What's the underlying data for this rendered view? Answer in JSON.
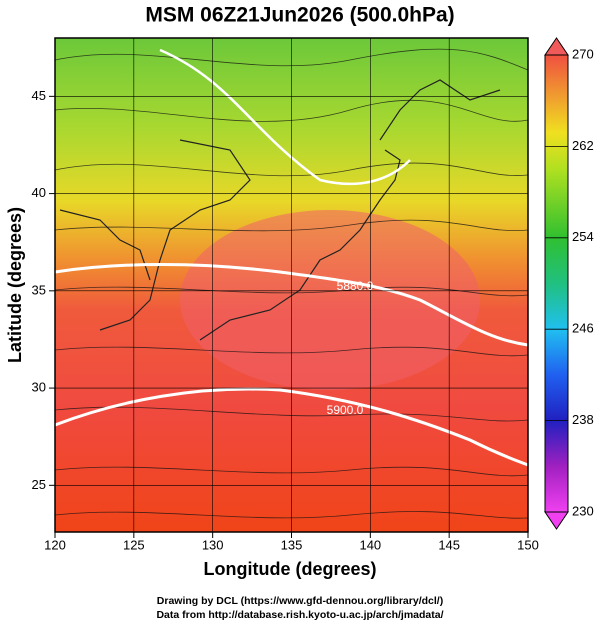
{
  "title": "MSM 06Z21Jun2026 (500.0hPa)",
  "x_axis": {
    "label": "Longitude (degrees)",
    "lim": [
      120,
      150
    ],
    "ticks": [
      120,
      125,
      130,
      135,
      140,
      145,
      150
    ]
  },
  "y_axis": {
    "label": "Latitude  (degrees)",
    "lim": [
      22.6,
      48
    ],
    "ticks": [
      25,
      30,
      35,
      40,
      45
    ]
  },
  "colorbar": {
    "lim": [
      230,
      270
    ],
    "ticks": [
      230,
      238,
      246,
      254,
      262,
      270
    ]
  },
  "contours": [
    {
      "value": 5880,
      "label": "5880.0"
    },
    {
      "value": 5900,
      "label": "5900.0"
    }
  ],
  "credits": [
    "Drawing by DCL (https://www.gfd-dennou.org/library/dcl/)",
    "Data from http://database.rish.kyoto-u.ac.jp/arch/jmadata/"
  ]
}
